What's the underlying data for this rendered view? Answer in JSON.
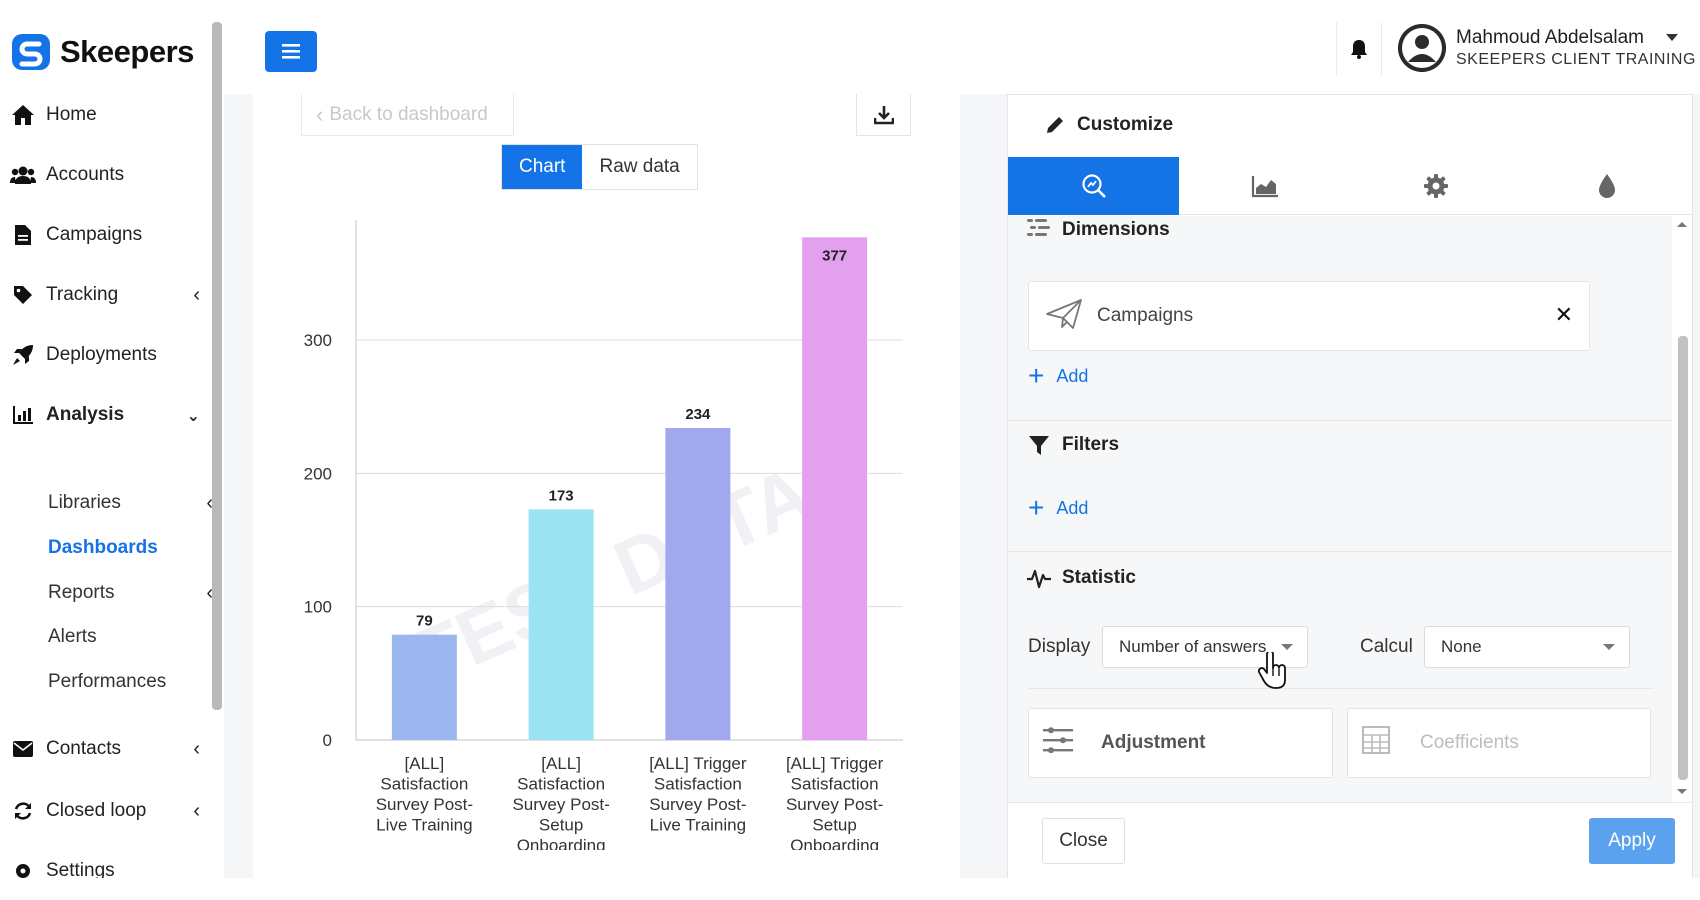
{
  "brand": {
    "name": "Skeepers",
    "accent": "#1473e6"
  },
  "sidebar": {
    "items": [
      {
        "label": "Home",
        "icon": "home-icon"
      },
      {
        "label": "Accounts",
        "icon": "users-icon"
      },
      {
        "label": "Campaigns",
        "icon": "file-icon"
      },
      {
        "label": "Tracking",
        "icon": "tag-icon"
      },
      {
        "label": "Deployments",
        "icon": "rocket-icon"
      },
      {
        "label": "Analysis",
        "icon": "chart-icon"
      },
      {
        "label": "Contacts",
        "icon": "envelope-icon"
      },
      {
        "label": "Closed loop",
        "icon": "refresh-icon"
      },
      {
        "label": "Settings",
        "icon": "gear-icon"
      }
    ],
    "analysis_sub": [
      {
        "label": "Libraries"
      },
      {
        "label": "Dashboards"
      },
      {
        "label": "Reports"
      },
      {
        "label": "Alerts"
      },
      {
        "label": "Performances"
      }
    ]
  },
  "user": {
    "name": "Mahmoud Abdelsalam",
    "org": "SKEEPERS CLIENT TRAINING"
  },
  "chart_panel": {
    "back_label": "Back to dashboard",
    "toggle": {
      "chart": "Chart",
      "raw": "Raw data"
    }
  },
  "chart_data": {
    "type": "bar",
    "categories": [
      "[ALL] Satisfaction Survey Post-Live Training",
      "[ALL] Satisfaction Survey Post-Setup Onboarding",
      "[ALL] Trigger Satisfaction Survey Post-Live Training",
      "[ALL] Trigger Satisfaction Survey Post-Setup Onboarding"
    ],
    "category_lines": [
      [
        "[ALL]",
        "Satisfaction",
        "Survey Post-",
        "Live Training"
      ],
      [
        "[ALL]",
        "Satisfaction",
        "Survey Post-",
        "Setup",
        "Onboarding"
      ],
      [
        "[ALL] Trigger",
        "Satisfaction",
        "Survey Post-",
        "Live Training"
      ],
      [
        "[ALL] Trigger",
        "Satisfaction",
        "Survey Post-",
        "Setup",
        "Onboarding"
      ]
    ],
    "values": [
      79,
      173,
      234,
      377
    ],
    "colors": [
      "#9cb7ef",
      "#9be3f3",
      "#a2a8ee",
      "#e2a0ee"
    ],
    "yticks": [
      0,
      100,
      200,
      300
    ],
    "ylim": [
      0,
      390
    ],
    "grid": true,
    "watermark": "TEST DATA"
  },
  "customize": {
    "title": "Customize",
    "tabs": [
      "search-chart-icon",
      "area-chart-icon",
      "gear-icon",
      "drop-icon"
    ],
    "dimensions": {
      "title": "Dimensions",
      "item": "Campaigns",
      "add": "Add"
    },
    "filters": {
      "title": "Filters",
      "add": "Add"
    },
    "statistic": {
      "title": "Statistic",
      "display_label": "Display",
      "display_value": "Number of answers",
      "calcul_label": "Calcul",
      "calcul_value": "None"
    },
    "options": {
      "adjustment": "Adjustment",
      "coefficients": "Coefficients"
    },
    "close": "Close",
    "apply": "Apply"
  }
}
